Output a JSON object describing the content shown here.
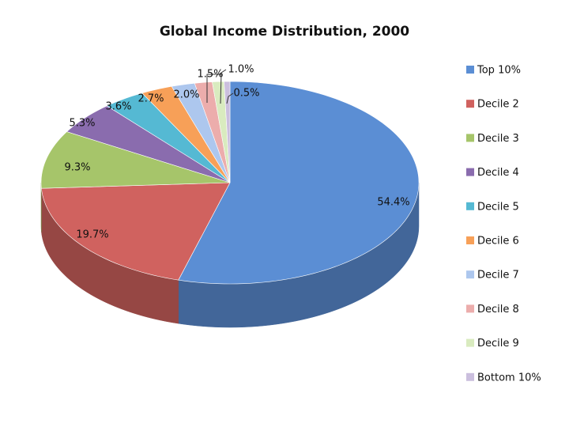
{
  "chart_data": {
    "type": "pie",
    "title": "Global Income Distribution, 2000",
    "categories": [
      "Top 10%",
      "Decile 2",
      "Decile 3",
      "Decile 4",
      "Decile 5",
      "Decile 6",
      "Decile 7",
      "Decile 8",
      "Decile 9",
      "Bottom 10%"
    ],
    "values": [
      54.4,
      19.7,
      9.3,
      5.3,
      3.6,
      2.7,
      2.0,
      1.5,
      1.0,
      0.5
    ],
    "value_labels": [
      "54.4%",
      "19.7%",
      "9.3%",
      "5.3%",
      "3.6%",
      "2.7%",
      "2.0%",
      "1.5%",
      "1.0%",
      "0.5%"
    ],
    "colors": [
      "#5b8ed4",
      "#d0625f",
      "#a6c56a",
      "#8a6cae",
      "#55b9d3",
      "#f7a058",
      "#adc7ee",
      "#ecadac",
      "#d9ebbf",
      "#cbbfde"
    ],
    "legend": "right"
  }
}
